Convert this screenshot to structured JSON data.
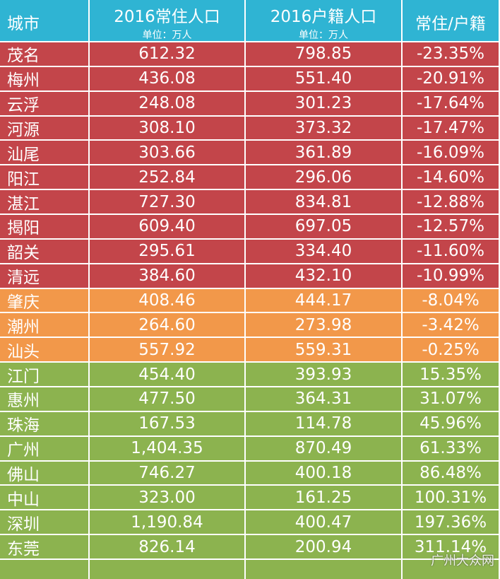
{
  "table": {
    "header": [
      {
        "title": "城市"
      },
      {
        "title": "2016常住人口",
        "unit": "单位：万人"
      },
      {
        "title": "2016户籍人口",
        "unit": "单位：万人"
      },
      {
        "title": "常住/户籍"
      }
    ],
    "header_color": "#2fb4d3",
    "sections": [
      {
        "color": "#c3454a",
        "rows": [
          [
            "茂名",
            "612.32",
            "798.85",
            "-23.35%"
          ],
          [
            "梅州",
            "436.08",
            "551.40",
            "-20.91%"
          ],
          [
            "云浮",
            "248.08",
            "301.23",
            "-17.64%"
          ],
          [
            "河源",
            "308.10",
            "373.32",
            "-17.47%"
          ],
          [
            "汕尾",
            "303.66",
            "361.89",
            "-16.09%"
          ],
          [
            "阳江",
            "252.84",
            "296.06",
            "-14.60%"
          ],
          [
            "湛江",
            "727.30",
            "834.81",
            "-12.88%"
          ],
          [
            "揭阳",
            "609.40",
            "697.05",
            "-12.57%"
          ],
          [
            "韶关",
            "295.61",
            "334.40",
            "-11.60%"
          ],
          [
            "清远",
            "384.60",
            "432.10",
            "-10.99%"
          ]
        ]
      },
      {
        "color": "#f2984a",
        "rows": [
          [
            "肇庆",
            "408.46",
            "444.17",
            "-8.04%"
          ],
          [
            "潮州",
            "264.60",
            "273.98",
            "-3.42%"
          ],
          [
            "汕头",
            "557.92",
            "559.31",
            "-0.25%"
          ]
        ]
      },
      {
        "color": "#8cb34f",
        "rows": [
          [
            "江门",
            "454.40",
            "393.93",
            "15.35%"
          ],
          [
            "惠州",
            "477.50",
            "364.31",
            "31.07%"
          ],
          [
            "珠海",
            "167.53",
            "114.78",
            "45.96%"
          ],
          [
            "广州",
            "1,404.35",
            "870.49",
            "61.33%"
          ],
          [
            "佛山",
            "746.27",
            "400.18",
            "86.48%"
          ],
          [
            "中山",
            "323.00",
            "161.25",
            "100.31%"
          ],
          [
            "深圳",
            "1,190.84",
            "400.47",
            "197.36%"
          ],
          [
            "东莞",
            "826.14",
            "200.94",
            "311.14%"
          ]
        ]
      }
    ],
    "watermark": "广州大众网"
  }
}
